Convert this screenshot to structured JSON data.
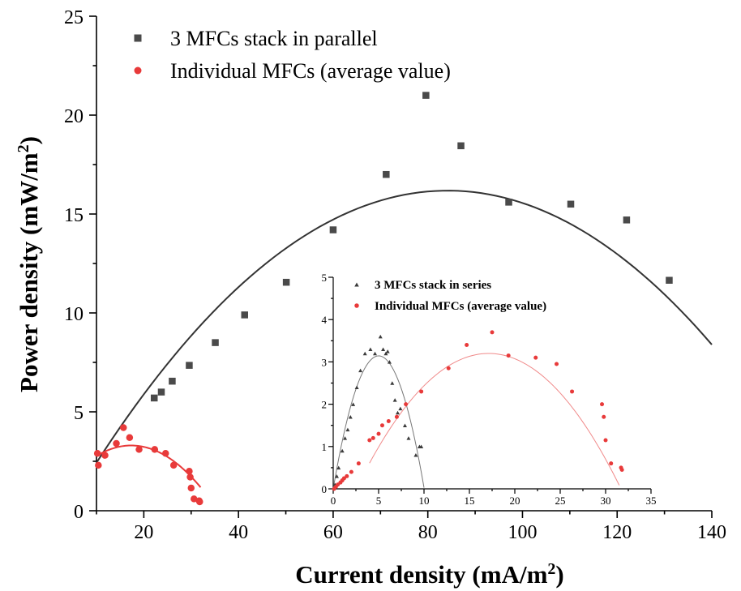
{
  "chart_data": [
    {
      "type": "scatter",
      "xlabel": "Current density",
      "xlabel_unit": "(mA/m",
      "xlabel_unit_sup": "2",
      "xlabel_unit_close": ")",
      "ylabel": "Power density",
      "ylabel_unit": "(mW/m",
      "ylabel_unit_sup": "2",
      "ylabel_unit_close": ")",
      "xlim": [
        10,
        140
      ],
      "ylim": [
        0,
        25
      ],
      "x_ticks": [
        20,
        40,
        60,
        80,
        100,
        120,
        140
      ],
      "y_ticks": [
        0,
        5,
        10,
        15,
        20,
        25
      ],
      "grid": false,
      "legend_position": "top-left",
      "series": [
        {
          "name": "3 MFCs stack in parallel",
          "marker": "square",
          "color": "#4a4a4a",
          "x": [
            22.2,
            23.7,
            26.0,
            29.6,
            35.1,
            41.3,
            50.1,
            60.0,
            71.2,
            79.6,
            87.0,
            97.1,
            110.2,
            122.0,
            131.0
          ],
          "y": [
            5.7,
            6.0,
            6.55,
            7.35,
            8.5,
            9.9,
            11.55,
            14.2,
            17.0,
            21.0,
            18.45,
            15.6,
            15.5,
            14.7,
            11.65
          ],
          "fit": {
            "color": "#333333",
            "x": [
              10,
              140
            ],
            "coefficients": [
              -1.5297,
              0.4208,
              -0.0024992
            ]
          }
        },
        {
          "name": "Individual MFCs (average value)",
          "marker": "circle",
          "color": "#e83a3a",
          "x": [
            10.2,
            10.4,
            11.8,
            14.2,
            15.7,
            17.0,
            19.0,
            22.3,
            24.6,
            26.3,
            29.6,
            29.8,
            30.0,
            30.6,
            31.7,
            31.8
          ],
          "y": [
            2.9,
            2.3,
            2.8,
            3.4,
            4.2,
            3.7,
            3.1,
            3.1,
            2.9,
            2.3,
            2.0,
            1.7,
            1.15,
            0.6,
            0.5,
            0.45
          ],
          "fit": {
            "color": "#e83a3a",
            "x": [
              10,
              32
            ],
            "coefficients": [
              0.3434,
              0.341,
              -0.009836
            ]
          }
        }
      ]
    },
    {
      "type": "scatter",
      "xlim": [
        0,
        35
      ],
      "ylim": [
        0,
        5
      ],
      "x_ticks": [
        0,
        5,
        10,
        15,
        20,
        25,
        30,
        35
      ],
      "y_ticks": [
        0,
        1,
        2,
        3,
        4,
        5
      ],
      "grid": false,
      "legend_position": "top-right",
      "series": [
        {
          "name": "3 MFCs stack in series",
          "marker": "triangle",
          "color": "#3a3a3a",
          "x": [
            0.2,
            0.4,
            0.6,
            1.0,
            1.3,
            1.6,
            1.9,
            2.2,
            2.6,
            3.0,
            3.5,
            4.1,
            4.6,
            5.2,
            5.5,
            5.8,
            6.0,
            6.2,
            6.5,
            6.8,
            7.1,
            7.4,
            7.9,
            8.3,
            9.1,
            9.5,
            9.7
          ],
          "y": [
            0.1,
            0.3,
            0.5,
            0.9,
            1.2,
            1.4,
            1.7,
            2.0,
            2.4,
            2.8,
            3.2,
            3.3,
            3.2,
            3.6,
            3.3,
            3.2,
            3.25,
            3.0,
            2.5,
            2.1,
            1.8,
            1.9,
            1.5,
            1.2,
            0.8,
            1.0,
            1.0
          ],
          "fit": {
            "color": "#777777",
            "x": [
              0,
              10
            ],
            "coefficients": [
              0,
              1.2544,
              -0.12516
            ]
          }
        },
        {
          "name": "Individual MFCs (average value)",
          "marker": "circle",
          "color": "#e83a3a",
          "x": [
            0.1,
            0.3,
            0.5,
            0.8,
            1.0,
            1.2,
            1.5,
            2.0,
            2.8,
            4.0,
            4.4,
            5.0,
            5.4,
            6.1,
            7.0,
            8.0,
            9.7,
            12.7,
            14.7,
            17.5,
            19.3,
            22.3,
            24.6,
            26.3,
            29.6,
            29.8,
            30.0,
            30.6,
            31.7,
            31.8
          ],
          "y": [
            0.0,
            0.05,
            0.1,
            0.15,
            0.2,
            0.25,
            0.3,
            0.4,
            0.6,
            1.15,
            1.2,
            1.3,
            1.5,
            1.6,
            1.7,
            2.0,
            2.3,
            2.85,
            3.4,
            3.7,
            3.15,
            3.1,
            2.95,
            2.3,
            2.0,
            1.7,
            1.15,
            0.6,
            0.5,
            0.45
          ],
          "fit": {
            "color": "#f08a8a",
            "x": [
              4,
              31.5
            ],
            "coefficients": [
              -1.2128,
              0.5155,
              -0.015057
            ]
          }
        }
      ]
    }
  ]
}
